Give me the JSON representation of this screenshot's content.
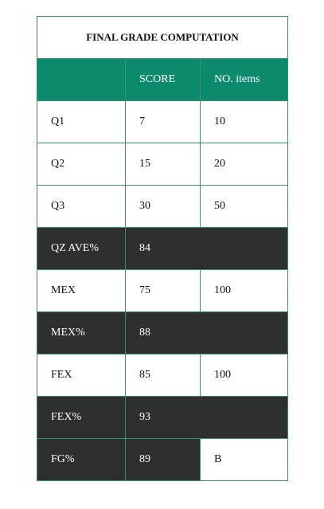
{
  "title": "FINAL GRADE COMPUTATION",
  "headers": {
    "blank": "",
    "score": "SCORE",
    "items": "NO. items"
  },
  "rows": [
    {
      "label": "Q1",
      "score": "7",
      "items": "10"
    },
    {
      "label": "Q2",
      "score": "15",
      "items": "20"
    },
    {
      "label": "Q3",
      "score": "30",
      "items": "50"
    },
    {
      "label": "QZ AVE%",
      "score": "84",
      "items": ""
    },
    {
      "label": "MEX",
      "score": "75",
      "items": "100"
    },
    {
      "label": "MEX%",
      "score": "88",
      "items": ""
    },
    {
      "label": "FEX",
      "score": "85",
      "items": "100"
    },
    {
      "label": "FEX%",
      "score": "93",
      "items": ""
    },
    {
      "label": "FG%",
      "score": "89",
      "items": "B"
    }
  ],
  "colors": {
    "header": "#0b8a6c",
    "summary": "#2e302f",
    "border": "#3b8f6e"
  }
}
